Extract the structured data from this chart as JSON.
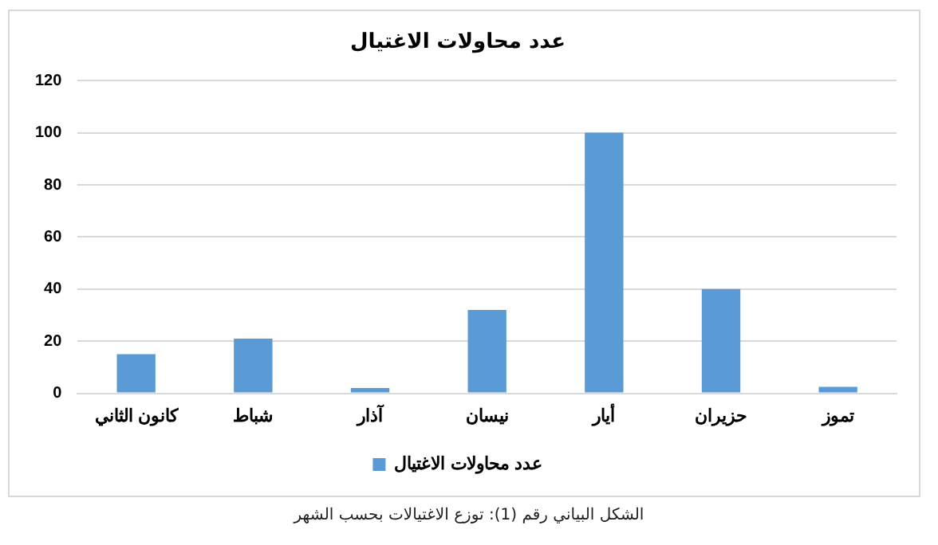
{
  "chart_data": {
    "type": "bar",
    "title": "عدد محاولات الاغتيال",
    "categories": [
      "كانون الثاني",
      "شباط",
      "آذار",
      "نيسان",
      "أيار",
      "حزيران",
      "تموز"
    ],
    "series": [
      {
        "name": "عدد محاولات الاغتيال",
        "color": "#5b9bd5",
        "values": [
          15,
          21,
          2,
          32,
          100,
          40,
          2.5
        ]
      }
    ],
    "ylim": [
      0,
      120
    ],
    "yticks": [
      0,
      20,
      40,
      60,
      80,
      100,
      120
    ],
    "grid": "y",
    "legend": "bottom",
    "annotations": [
      "الشكل البياني رقم (1): توزع الاغتيالات بحسب الشهر"
    ]
  }
}
